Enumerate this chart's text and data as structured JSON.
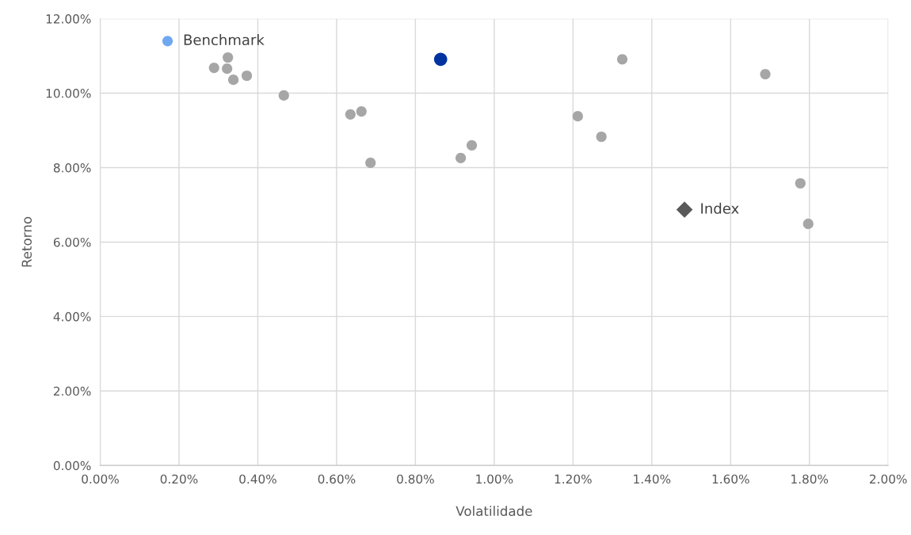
{
  "chart_data": {
    "type": "scatter",
    "xlabel": "Volatilidade",
    "ylabel": "Retorno",
    "xlim": [
      0,
      2
    ],
    "ylim": [
      0,
      12
    ],
    "xticks": [
      {
        "value": 0,
        "label": "0.00%"
      },
      {
        "value": 0.2,
        "label": "0.20%"
      },
      {
        "value": 0.4,
        "label": "0.40%"
      },
      {
        "value": 0.6,
        "label": "0.60%"
      },
      {
        "value": 0.8,
        "label": "0.80%"
      },
      {
        "value": 1.0,
        "label": "1.00%"
      },
      {
        "value": 1.2,
        "label": "1.20%"
      },
      {
        "value": 1.4,
        "label": "1.40%"
      },
      {
        "value": 1.6,
        "label": "1.60%"
      },
      {
        "value": 1.8,
        "label": "1.80%"
      },
      {
        "value": 2.0,
        "label": "2.00%"
      }
    ],
    "yticks": [
      {
        "value": 0,
        "label": "0.00%"
      },
      {
        "value": 2,
        "label": "2.00%"
      },
      {
        "value": 4,
        "label": "4.00%"
      },
      {
        "value": 6,
        "label": "6.00%"
      },
      {
        "value": 8,
        "label": "8.00%"
      },
      {
        "value": 10,
        "label": "10.00%"
      },
      {
        "value": 12,
        "label": "12.00%"
      }
    ],
    "grid": true,
    "legend": false,
    "series": [
      {
        "color": "#a6a6a6",
        "marker": "circle",
        "x": [
          0.289,
          0.324,
          0.322,
          0.338,
          0.372,
          0.466,
          0.635,
          0.663,
          0.686,
          0.915,
          0.943,
          1.212,
          1.272,
          1.325,
          1.688,
          1.777,
          1.797
        ],
        "values": [
          10.68,
          10.96,
          10.66,
          10.36,
          10.47,
          9.94,
          9.43,
          9.51,
          8.13,
          8.26,
          8.6,
          9.38,
          8.83,
          10.91,
          10.51,
          7.58,
          6.49
        ]
      },
      {
        "name": "Benchmark",
        "color": "#6fa8f0",
        "marker": "circle",
        "x": [
          0.171
        ],
        "values": [
          11.4
        ]
      },
      {
        "color": "#0033a0",
        "marker": "circle",
        "x": [
          0.864
        ],
        "values": [
          10.91
        ]
      },
      {
        "name": "Index",
        "color": "#595959",
        "marker": "diamond",
        "x": [
          1.483
        ],
        "values": [
          6.87
        ]
      }
    ]
  }
}
